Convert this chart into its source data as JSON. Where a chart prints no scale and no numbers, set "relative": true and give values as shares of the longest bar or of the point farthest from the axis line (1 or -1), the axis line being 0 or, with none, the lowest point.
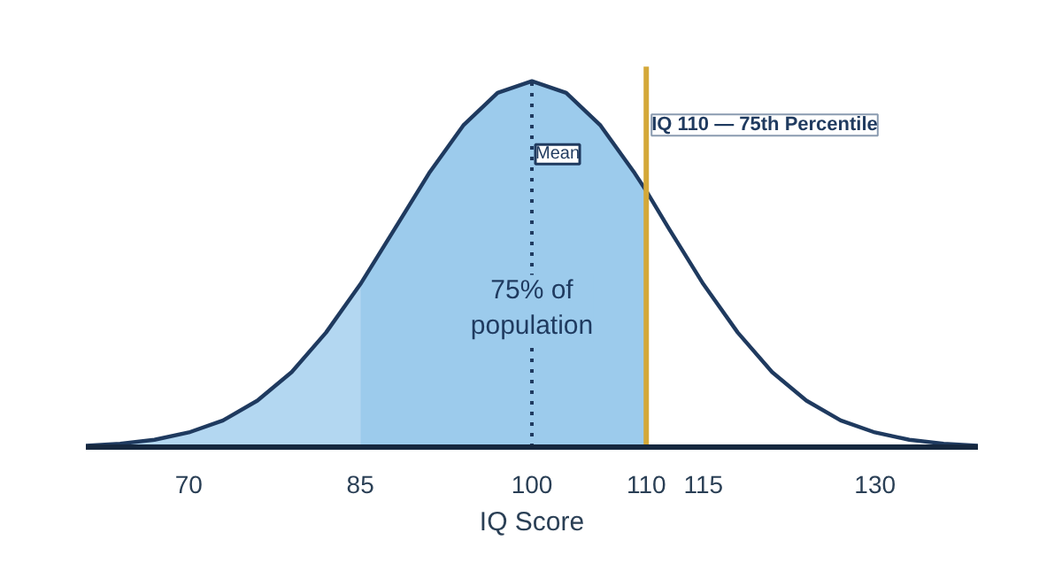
{
  "chart_data": {
    "type": "line",
    "relative": true,
    "xlabel": "IQ Score",
    "xlim": [
      61,
      139
    ],
    "xticks": [
      70,
      85,
      100,
      110,
      115,
      130
    ],
    "tick_labels": "x",
    "grid": false,
    "series": [
      {
        "type": "area",
        "color": "#b3d7f1",
        "x": [
          61,
          64,
          67,
          70,
          73,
          76,
          79,
          82,
          85
        ],
        "values": [
          0.004,
          0.0095,
          0.02,
          0.04,
          0.073,
          0.127,
          0.205,
          0.313,
          0.445
        ]
      },
      {
        "type": "area",
        "color": "#9ccbec",
        "x": [
          85,
          88,
          91,
          94,
          97,
          100,
          103,
          106,
          109,
          110
        ],
        "values": [
          0.445,
          0.596,
          0.748,
          0.879,
          0.968,
          1,
          0.968,
          0.879,
          0.748,
          0.7
        ]
      },
      {
        "color": "#1f3a5f",
        "x": [
          61,
          64,
          67,
          70,
          73,
          76,
          79,
          82,
          85,
          88,
          91,
          94,
          97,
          100,
          103,
          106,
          109,
          110,
          112,
          115,
          118,
          121,
          124,
          127,
          130,
          133,
          136,
          139
        ],
        "values": [
          0.004,
          0.0095,
          0.02,
          0.04,
          0.073,
          0.127,
          0.205,
          0.313,
          0.445,
          0.596,
          0.748,
          0.879,
          0.968,
          1,
          0.968,
          0.879,
          0.748,
          0.7,
          0.596,
          0.445,
          0.313,
          0.205,
          0.127,
          0.073,
          0.04,
          0.02,
          0.0095,
          0.004
        ]
      }
    ],
    "ref_lines": [
      {
        "axis": "x",
        "value": 100,
        "label": "Mean",
        "color": "#1f3a5f",
        "line_style": "dotted"
      },
      {
        "axis": "x",
        "value": 110,
        "label": "IQ 110 — 75th Percentile",
        "color": "#d4a838",
        "line_style": "solid"
      }
    ],
    "annotations": [
      "75% of\npopulation"
    ]
  }
}
